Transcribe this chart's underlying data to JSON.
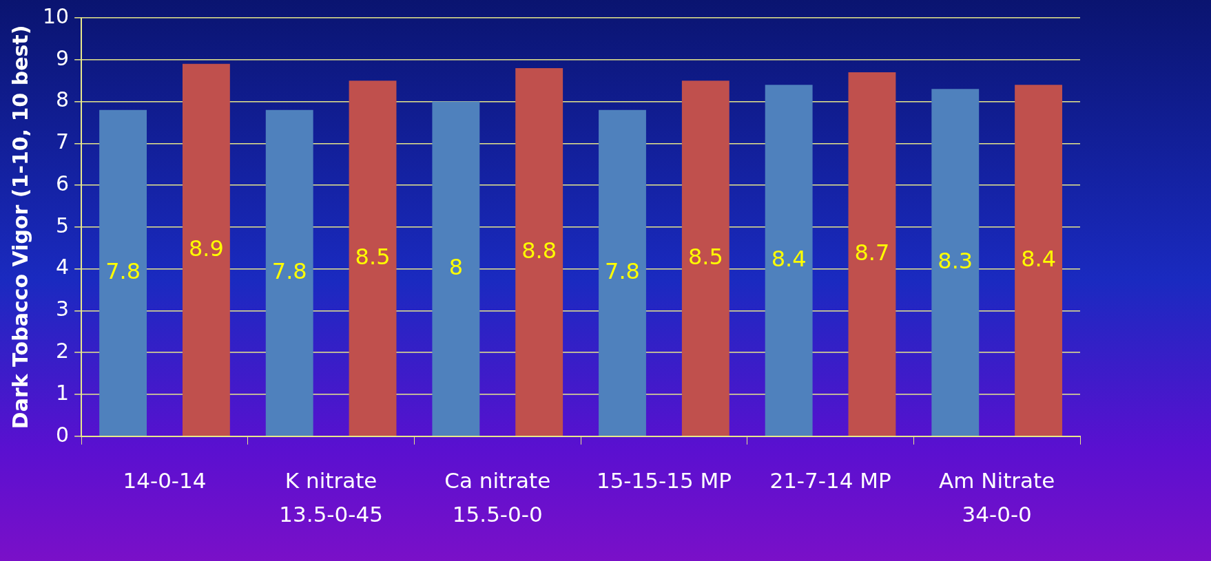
{
  "chart_data": {
    "type": "bar",
    "ylabel": "Dark Tobacco Vigor (1-10, 10 best)",
    "categories": [
      "14-0-14",
      "K nitrate\n13.5-0-45",
      "Ca nitrate\n15.5-0-0",
      "15-15-15 MP",
      "21-7-14 MP",
      "Am Nitrate\n34-0-0"
    ],
    "series": [
      {
        "color": "#4f81bd",
        "values": [
          7.8,
          7.8,
          8,
          7.8,
          8.4,
          8.3
        ]
      },
      {
        "color": "#c0504d",
        "values": [
          8.9,
          8.5,
          8.8,
          8.5,
          8.7,
          8.4
        ]
      }
    ],
    "ylim": [
      0,
      10
    ],
    "yticks": [
      0,
      1,
      2,
      3,
      4,
      5,
      6,
      7,
      8,
      9,
      10
    ],
    "grid": "y",
    "data_labels": true,
    "legend": false
  }
}
